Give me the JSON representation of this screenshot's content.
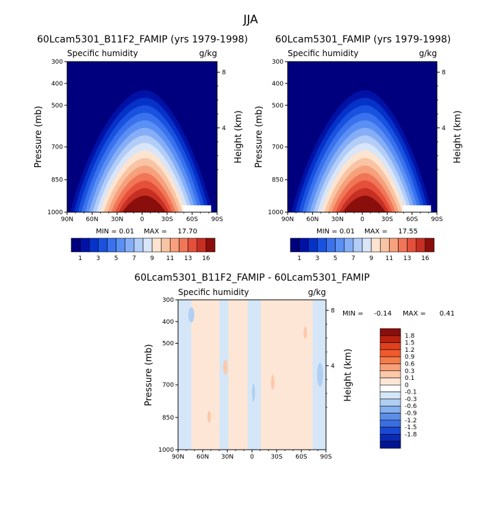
{
  "figure_title": "JJA",
  "chart_data": [
    {
      "type": "heatmap",
      "title": "60Lcam5301_B11F2_FAMIP (yrs 1979-1998)",
      "left_subtitle": "Specific humidity",
      "right_subtitle": "g/kg",
      "ylabel": "Pressure (mb)",
      "y2label": "Height (km)",
      "x_ticks": [
        "90N",
        "60N",
        "30N",
        "0",
        "30S",
        "60S",
        "90S"
      ],
      "y_ticks": [
        "300",
        "400",
        "500",
        "700",
        "850",
        "1000"
      ],
      "y2_ticks": [
        "8",
        "4"
      ],
      "stats": {
        "min_label": "MIN =",
        "min": "0.01",
        "max_label": "MAX =",
        "max": "17.70"
      },
      "colorbar": {
        "levels": [
          1,
          2,
          3,
          4,
          5,
          6,
          7,
          8,
          9,
          10,
          11,
          12,
          13,
          14,
          16
        ],
        "tick_labels": [
          "1",
          "3",
          "5",
          "7",
          "9",
          "11",
          "13",
          "16"
        ],
        "colors": [
          "#00007f",
          "#0012a6",
          "#0532c8",
          "#1a52e0",
          "#3a72ee",
          "#5a90f4",
          "#86aef6",
          "#b2cdf8",
          "#d9e5f8",
          "#fce4d0",
          "#f9c4a3",
          "#f6a07c",
          "#f07657",
          "#e5503b",
          "#c72f22",
          "#8a0f0c"
        ]
      },
      "max_value": 17.7
    },
    {
      "type": "heatmap",
      "title": "60Lcam5301_FAMIP (yrs 1979-1998)",
      "left_subtitle": "Specific humidity",
      "right_subtitle": "g/kg",
      "ylabel": "Pressure (mb)",
      "y2label": "Height (km)",
      "x_ticks": [
        "90N",
        "60N",
        "30N",
        "0",
        "30S",
        "60S",
        "90S"
      ],
      "y_ticks": [
        "300",
        "400",
        "500",
        "700",
        "850",
        "1000"
      ],
      "y2_ticks": [
        "8",
        "4"
      ],
      "stats": {
        "min_label": "MIN =",
        "min": "0.01",
        "max_label": "MAX =",
        "max": "17.55"
      },
      "colorbar": {
        "levels": [
          1,
          2,
          3,
          4,
          5,
          6,
          7,
          8,
          9,
          10,
          11,
          12,
          13,
          14,
          16
        ],
        "tick_labels": [
          "1",
          "3",
          "5",
          "7",
          "9",
          "11",
          "13",
          "16"
        ],
        "colors": [
          "#00007f",
          "#0012a6",
          "#0532c8",
          "#1a52e0",
          "#3a72ee",
          "#5a90f4",
          "#86aef6",
          "#b2cdf8",
          "#d9e5f8",
          "#fce4d0",
          "#f9c4a3",
          "#f6a07c",
          "#f07657",
          "#e5503b",
          "#c72f22",
          "#8a0f0c"
        ]
      },
      "max_value": 17.55
    },
    {
      "type": "heatmap",
      "title": "60Lcam5301_B11F2_FAMIP - 60Lcam5301_FAMIP",
      "left_subtitle": "Specific humidity",
      "right_subtitle": "g/kg",
      "ylabel": "Pressure (mb)",
      "y2label": "Height (km)",
      "x_ticks": [
        "90N",
        "60N",
        "30N",
        "0",
        "30S",
        "60S",
        "90S"
      ],
      "y_ticks": [
        "300",
        "400",
        "500",
        "700",
        "850",
        "1000"
      ],
      "y2_ticks": [
        "8",
        "4"
      ],
      "stats": {
        "min_label": "MIN =",
        "min": "-0.14",
        "max_label": "MAX =",
        "max": "0.41"
      },
      "colorbar": {
        "labels_top_to_bottom": [
          "1.8",
          "1.5",
          "1.2",
          "0.9",
          "0.6",
          "0.3",
          "0.1",
          "0",
          "-0.1",
          "-0.3",
          "-0.6",
          "-0.9",
          "-1.2",
          "-1.5",
          "-1.8"
        ],
        "colors_top_to_bottom": [
          "#8a0f0c",
          "#b8220f",
          "#e0401c",
          "#f05a2c",
          "#f67c4c",
          "#f9a07a",
          "#fcc9aa",
          "#fde6d6",
          "#ffffff",
          "#d4e6f7",
          "#b0cff2",
          "#86b0ee",
          "#5a8ee8",
          "#3a6ee2",
          "#1a4ad4",
          "#0a2ab6",
          "#001690"
        ]
      }
    }
  ]
}
